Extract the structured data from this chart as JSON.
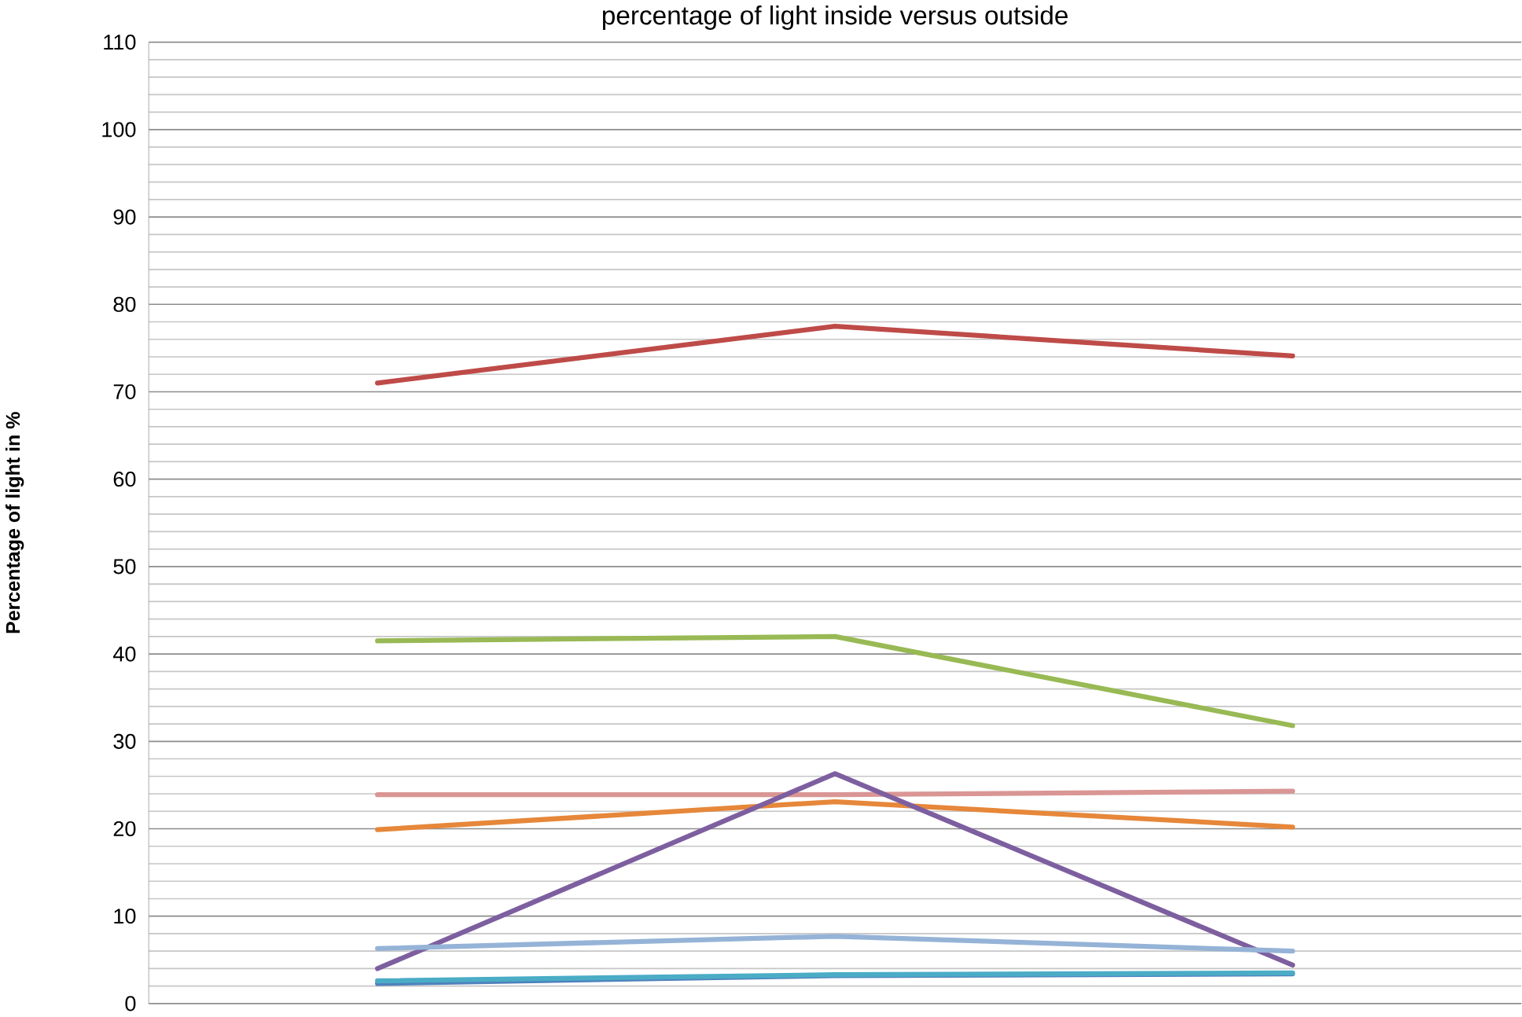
{
  "chart_data": {
    "type": "line",
    "title": "percentage of light inside versus outside",
    "ylabel": "Percentage of light in %",
    "categories": [
      null,
      null,
      null
    ],
    "series": [
      {
        "color": "#be4b48",
        "values": [
          71,
          77.5,
          74.1
        ]
      },
      {
        "color": "#98b954",
        "values": [
          41.5,
          42,
          31.8
        ]
      },
      {
        "color": "#d99694",
        "values": [
          23.9,
          23.9,
          24.3
        ]
      },
      {
        "color": "#e6873a",
        "values": [
          19.9,
          23.1,
          20.2
        ]
      },
      {
        "color": "#7d5fa0",
        "values": [
          4.0,
          26.3,
          4.4
        ]
      },
      {
        "color": "#95b3d7",
        "values": [
          6.3,
          7.7,
          6.0
        ]
      },
      {
        "color": "#4f81bd",
        "values": [
          2.3,
          3.2,
          3.4
        ]
      },
      {
        "color": "#4bacc6",
        "values": [
          2.6,
          3.3,
          3.5
        ]
      }
    ],
    "ylim": [
      0,
      110
    ],
    "yticks": [
      0,
      10,
      20,
      30,
      40,
      50,
      60,
      70,
      80,
      90,
      100,
      110
    ],
    "grid": "y",
    "marker": "none",
    "line_style": "solid"
  }
}
